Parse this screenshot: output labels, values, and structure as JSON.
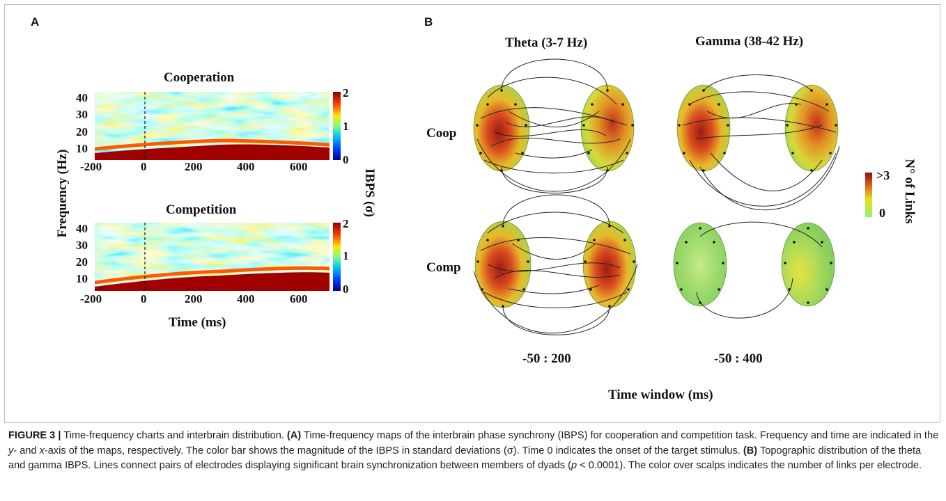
{
  "panel_a": {
    "letter": "A",
    "maps": [
      {
        "title": "Cooperation"
      },
      {
        "title": "Competition"
      }
    ],
    "y_axis_label": "Frequency (Hz)",
    "y_ticks": [
      "40",
      "30",
      "20",
      "10"
    ],
    "x_ticks": [
      "-200",
      "0",
      "200",
      "400",
      "600"
    ],
    "x_axis_label": "Time (ms)",
    "colorbar_ticks": [
      "2",
      "1",
      "0"
    ],
    "colorbar_label": "IBPS (σ)"
  },
  "panel_b": {
    "letter": "B",
    "columns": [
      "Theta (3-7 Hz)",
      "Gamma (38-42 Hz)"
    ],
    "rows": [
      "Coop",
      "Comp"
    ],
    "windows": [
      "-50 : 200",
      "-50 : 400"
    ],
    "x_axis_label": "Time window (ms)",
    "colorbar_top": ">3",
    "colorbar_bottom": "0",
    "colorbar_label": "N° of Links"
  },
  "caption": {
    "figure_label": "FIGURE 3 |",
    "title": " Time-frequency charts and interbrain distribution. ",
    "a_label": "(A)",
    "a_text": " Time-frequency maps of the interbrain phase synchrony (IBPS) for cooperation and competition task. Frequency and time are indicated in the ",
    "y_word": "y",
    "a_mid": "- and ",
    "x_word": "x",
    "a_text2": "-axis of the maps, respectively. The color bar shows the magnitude of the IBPS in standard deviations (σ). Time 0 indicates the onset of the target stimulus. ",
    "b_label": "(B)",
    "b_text": " Topographic distribution of the theta and gamma IBPS. Lines connect pairs of electrodes displaying significant brain synchronization between members of dyads (",
    "p_word": "p",
    "b_text2": " < 0.0001). The color over scalps indicates the number of links per electrode."
  }
}
